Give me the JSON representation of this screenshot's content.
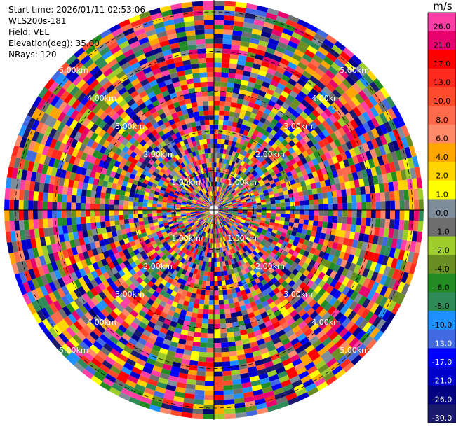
{
  "header": {
    "start_time": "Start time: 2026/01/11 02:53:06",
    "station": "WLS200s-181",
    "field": "Field: VEL",
    "elevation": "Elevation(deg): 35.00",
    "nrays": "NRays: 120"
  },
  "colorbar": {
    "unit": "m/s",
    "ticks": [
      "26.0",
      "21.0",
      "17.0",
      "13.0",
      "10.0",
      "8.0",
      "6.0",
      "4.0",
      "2.0",
      "1.0",
      "0.0",
      "-1.0",
      "-2.0",
      "-4.0",
      "-6.0",
      "-8.0",
      "-10.0",
      "-13.0",
      "-17.0",
      "-21.0",
      "-26.0",
      "-30.0"
    ],
    "colors": [
      "#ff3fa6",
      "#e8006e",
      "#ff0000",
      "#ff2a1e",
      "#ff4a2c",
      "#ff6a4a",
      "#ff8a6a",
      "#ffa500",
      "#ffd400",
      "#ffff00",
      "#7f8c99",
      "#6e6e6e",
      "#9ccd2a",
      "#6b8e23",
      "#228b22",
      "#2e8b57",
      "#1e90ff",
      "#4169e1",
      "#0000ff",
      "#0000cd",
      "#000080",
      "#1a1a6e"
    ]
  },
  "chart_data": {
    "type": "ppi",
    "field": "VEL",
    "elevation_deg": 35.0,
    "nrays": 120,
    "range_rings_km": [
      "1.00km",
      "2.00km",
      "3.00km",
      "4.00km",
      "5.00km"
    ],
    "range_ring_values_km": [
      1.0,
      2.0,
      3.0,
      4.0,
      5.0
    ],
    "max_range_km": 5.3,
    "vmin": -30.0,
    "vmax": 26.0
  }
}
